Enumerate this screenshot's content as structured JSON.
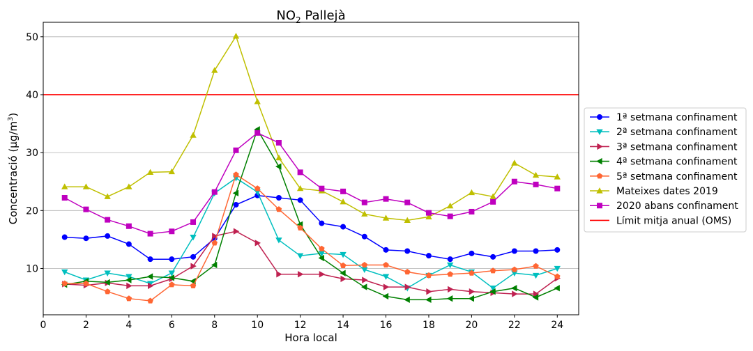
{
  "chart_data": {
    "type": "line",
    "title": "NO",
    "title_sub": "2",
    "title_rest": " Pallejà",
    "xlabel": "Hora local",
    "ylabel": "Concentració (µg/m",
    "ylabel_sup": "3",
    "ylabel_end": ")",
    "xlim": [
      0,
      25
    ],
    "ylim": [
      2,
      52.5
    ],
    "xticks": [
      0,
      2,
      4,
      6,
      8,
      10,
      12,
      14,
      16,
      18,
      20,
      22,
      24
    ],
    "yticks": [
      10,
      20,
      30,
      40,
      50
    ],
    "grid": "horizontal",
    "legend_position": "right",
    "x": [
      1,
      2,
      3,
      4,
      5,
      6,
      7,
      8,
      9,
      10,
      11,
      12,
      13,
      14,
      15,
      16,
      17,
      18,
      19,
      20,
      21,
      22,
      23,
      24
    ],
    "series": [
      {
        "name": "1ª setmana confinament",
        "color": "#0000ff",
        "marker": "circle",
        "values": [
          15.4,
          15.2,
          15.6,
          14.2,
          11.6,
          11.6,
          12.0,
          15.2,
          21.0,
          22.6,
          22.2,
          21.8,
          17.8,
          17.2,
          15.5,
          13.2,
          13.0,
          12.2,
          11.6,
          12.6,
          12.0,
          13.0,
          13.0,
          13.2
        ]
      },
      {
        "name": "2ª setmana confinament",
        "color": "#00bfbf",
        "marker": "triangle-down",
        "values": [
          9.4,
          8.0,
          9.2,
          8.6,
          7.4,
          9.2,
          15.4,
          23.0,
          25.6,
          23.2,
          14.9,
          12.2,
          12.6,
          12.4,
          9.8,
          8.6,
          6.6,
          8.8,
          10.6,
          9.4,
          6.6,
          9.2,
          8.8,
          10.0
        ]
      },
      {
        "name": "3ª setmana confinament",
        "color": "#bf2150",
        "marker": "triangle-right",
        "values": [
          7.3,
          7.1,
          7.5,
          7.0,
          7.0,
          8.2,
          10.4,
          15.6,
          16.4,
          14.4,
          9.0,
          9.0,
          9.0,
          8.2,
          8.0,
          6.8,
          6.8,
          6.0,
          6.4,
          6.0,
          5.8,
          5.6,
          5.6,
          8.3
        ]
      },
      {
        "name": "4ª setmana confinament",
        "color": "#008000",
        "marker": "triangle-left",
        "values": [
          7.2,
          7.8,
          7.6,
          8.0,
          8.6,
          8.4,
          7.8,
          10.6,
          23.0,
          34.0,
          27.6,
          17.6,
          11.8,
          9.2,
          6.8,
          5.2,
          4.6,
          4.6,
          4.8,
          4.8,
          6.0,
          6.6,
          5.0,
          6.6
        ]
      },
      {
        "name": "5ª setmana confinament",
        "color": "#ff6633",
        "marker": "pentagon",
        "values": [
          7.4,
          7.4,
          6.0,
          4.8,
          4.4,
          7.2,
          7.0,
          14.4,
          26.2,
          23.8,
          20.2,
          17.0,
          13.4,
          10.5,
          10.6,
          10.6,
          9.4,
          8.8,
          9.0,
          9.2,
          9.6,
          9.8,
          10.4,
          8.6
        ]
      },
      {
        "name": "Mateixes dates 2019",
        "color": "#bfbf00",
        "marker": "triangle-up",
        "values": [
          24.1,
          24.1,
          22.4,
          24.1,
          26.6,
          26.7,
          33.0,
          44.2,
          50.1,
          38.8,
          29.1,
          23.8,
          23.4,
          21.5,
          19.4,
          18.7,
          18.3,
          18.9,
          20.8,
          23.1,
          22.4,
          28.2,
          26.1,
          25.8
        ]
      },
      {
        "name": "2020 abans confinament",
        "color": "#bf00bf",
        "marker": "square",
        "values": [
          22.2,
          20.2,
          18.4,
          17.3,
          16.0,
          16.4,
          18.0,
          23.2,
          30.4,
          33.4,
          31.7,
          26.6,
          23.8,
          23.3,
          21.4,
          22.0,
          21.4,
          19.6,
          19.0,
          19.8,
          21.5,
          25.0,
          24.5,
          23.8
        ]
      }
    ],
    "reference_line": {
      "name": "Límit mitja anual (OMS)",
      "value": 40,
      "color": "#ff0000"
    }
  }
}
